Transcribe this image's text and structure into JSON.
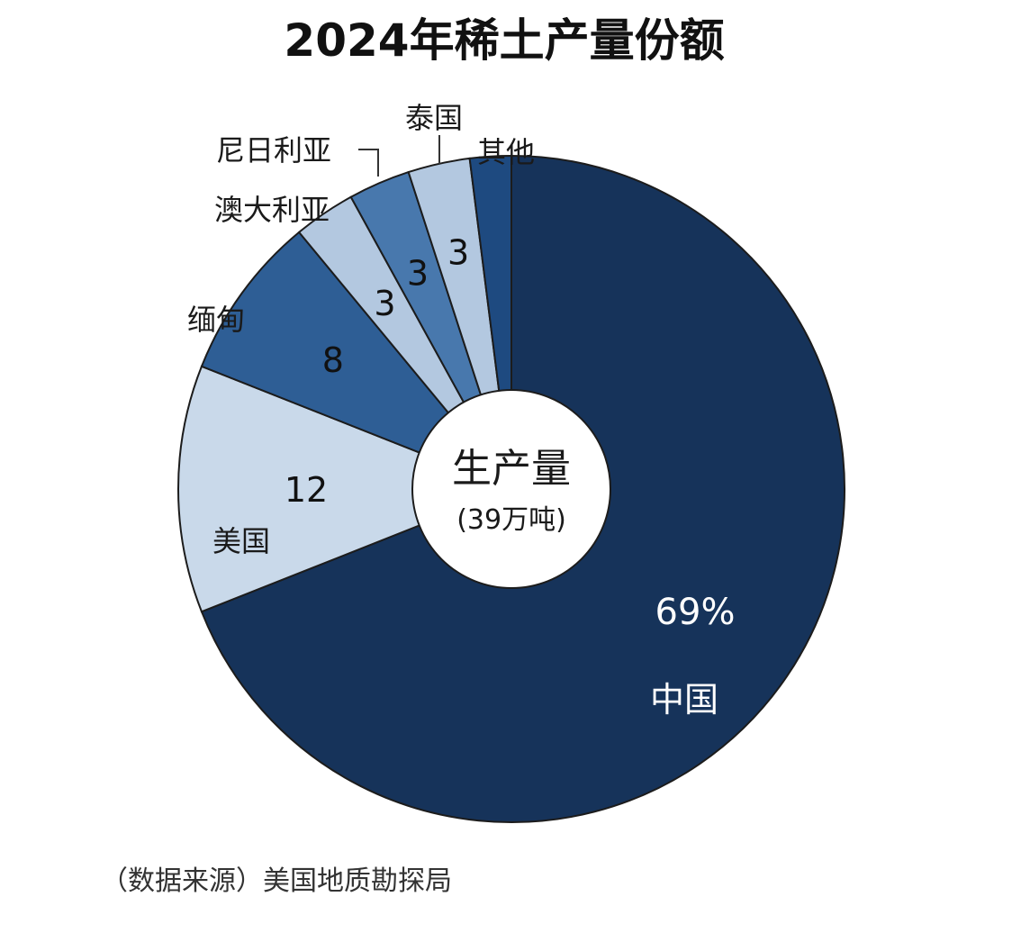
{
  "chart_data": {
    "type": "pie",
    "style": "donut",
    "title": "2024年稀土产量份额",
    "center": {
      "label": "生产量",
      "sublabel": "(39万吨)"
    },
    "slices": [
      {
        "name": "中国",
        "value": 69,
        "value_label": "69%",
        "color": "#16335a"
      },
      {
        "name": "美国",
        "value": 12,
        "value_label": "12",
        "color": "#c9d9ea"
      },
      {
        "name": "缅甸",
        "value": 8,
        "value_label": "8",
        "color": "#2e5e95"
      },
      {
        "name": "澳大利亚",
        "value": 3,
        "value_label": "3",
        "color": "#b3c8e0"
      },
      {
        "name": "尼日利亚",
        "value": 3,
        "value_label": "3",
        "color": "#4878ad"
      },
      {
        "name": "泰国",
        "value": 3,
        "value_label": "3",
        "color": "#b3c8e0"
      },
      {
        "name": "其他",
        "value": 2,
        "value_label": "",
        "color": "#1e4a80"
      }
    ],
    "source": "（数据来源）美国地质勘探局"
  }
}
